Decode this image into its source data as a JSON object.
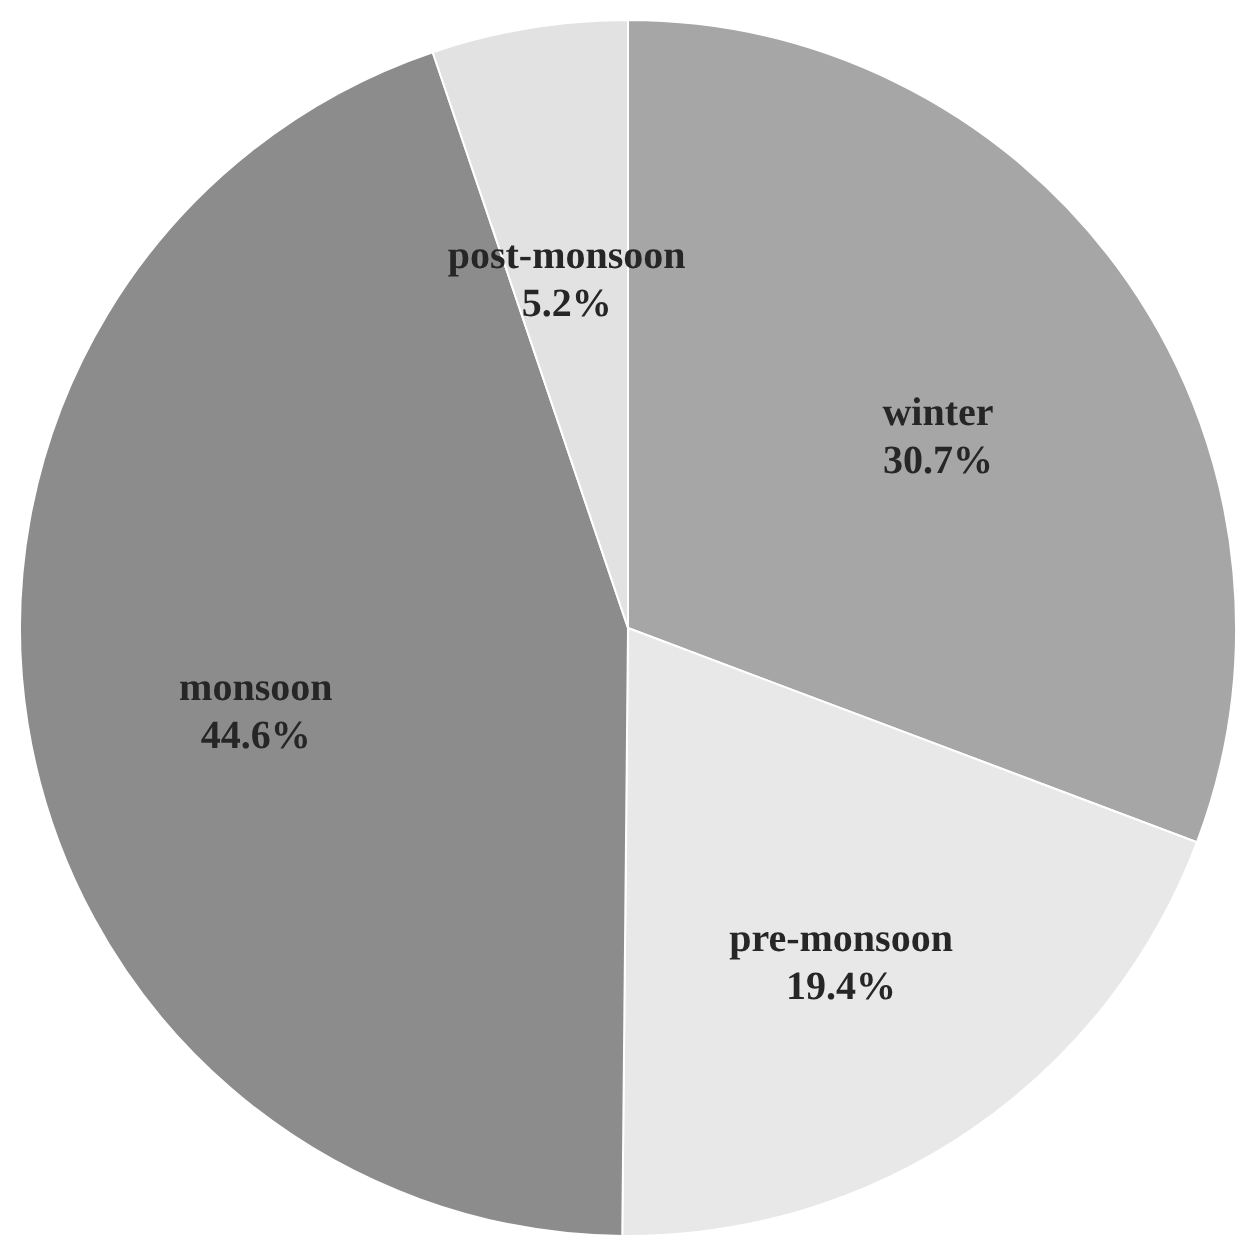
{
  "chart_data": {
    "type": "pie",
    "categories": [
      "winter",
      "pre-monsoon",
      "monsoon",
      "post-monsoon"
    ],
    "values": [
      30.7,
      19.4,
      44.6,
      5.2
    ],
    "colors": [
      "#a6a6a6",
      "#e8e8e8",
      "#8c8c8c",
      "#e2e2e2"
    ],
    "value_labels": [
      "30.7%",
      "19.4%",
      "44.6%",
      "5.2%"
    ]
  }
}
